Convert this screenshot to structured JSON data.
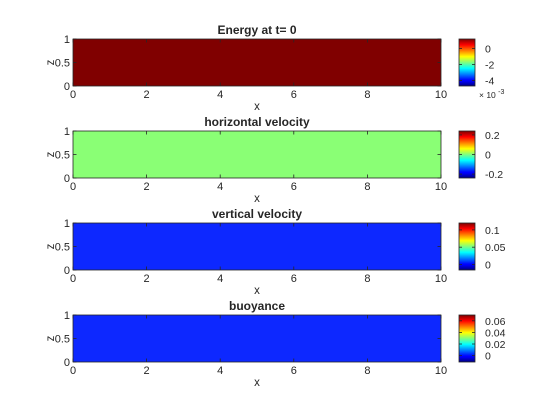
{
  "chart_data": [
    {
      "type": "heatmap",
      "title": "Energy at t= 0",
      "xlabel": "x",
      "ylabel": "z",
      "xlim": [
        0,
        10
      ],
      "ylim": [
        0,
        1
      ],
      "x_ticks": [
        "0",
        "2",
        "4",
        "6",
        "8",
        "10"
      ],
      "y_ticks": [
        "0",
        "0.5",
        "1"
      ],
      "field_value": 0.0012,
      "colorbar": {
        "range": [
          -0.0047,
          0.0012
        ],
        "ticks": [
          "-4",
          "-2",
          "0"
        ],
        "tick_values": [
          -0.004,
          -0.002,
          0
        ],
        "exponent_label": "× 10",
        "exponent_power": "-3"
      },
      "fill_color": "#800000"
    },
    {
      "type": "heatmap",
      "title": "horizontal velocity",
      "xlabel": "x",
      "ylabel": "z",
      "xlim": [
        0,
        10
      ],
      "ylim": [
        0,
        1
      ],
      "x_ticks": [
        "0",
        "2",
        "4",
        "6",
        "8",
        "10"
      ],
      "y_ticks": [
        "0",
        "0.5",
        "1"
      ],
      "field_value": 0,
      "colorbar": {
        "range": [
          -0.24,
          0.24
        ],
        "ticks": [
          "-0.2",
          "0",
          "0.2"
        ],
        "tick_values": [
          -0.2,
          0,
          0.2
        ]
      },
      "fill_color": "#8AFF75"
    },
    {
      "type": "heatmap",
      "title": "vertical velocity",
      "xlabel": "x",
      "ylabel": "z",
      "xlim": [
        0,
        10
      ],
      "ylim": [
        0,
        1
      ],
      "x_ticks": [
        "0",
        "2",
        "4",
        "6",
        "8",
        "10"
      ],
      "y_ticks": [
        "0",
        "0.5",
        "1"
      ],
      "field_value": 0,
      "colorbar": {
        "range": [
          -0.016,
          0.12
        ],
        "ticks": [
          "0",
          "0.05",
          "0.1"
        ],
        "tick_values": [
          0,
          0.05,
          0.1
        ]
      },
      "fill_color": "#0D28FF"
    },
    {
      "type": "heatmap",
      "title": "buoyance",
      "xlabel": "x",
      "ylabel": "z",
      "xlim": [
        0,
        10
      ],
      "ylim": [
        0,
        1
      ],
      "x_ticks": [
        "0",
        "2",
        "4",
        "6",
        "8",
        "10"
      ],
      "y_ticks": [
        "0",
        "0.5",
        "1"
      ],
      "field_value": 0,
      "colorbar": {
        "range": [
          -0.011,
          0.07
        ],
        "ticks": [
          "0",
          "0.02",
          "0.04",
          "0.06"
        ],
        "tick_values": [
          0,
          0.02,
          0.04,
          0.06
        ]
      },
      "fill_color": "#0D28FF"
    }
  ]
}
